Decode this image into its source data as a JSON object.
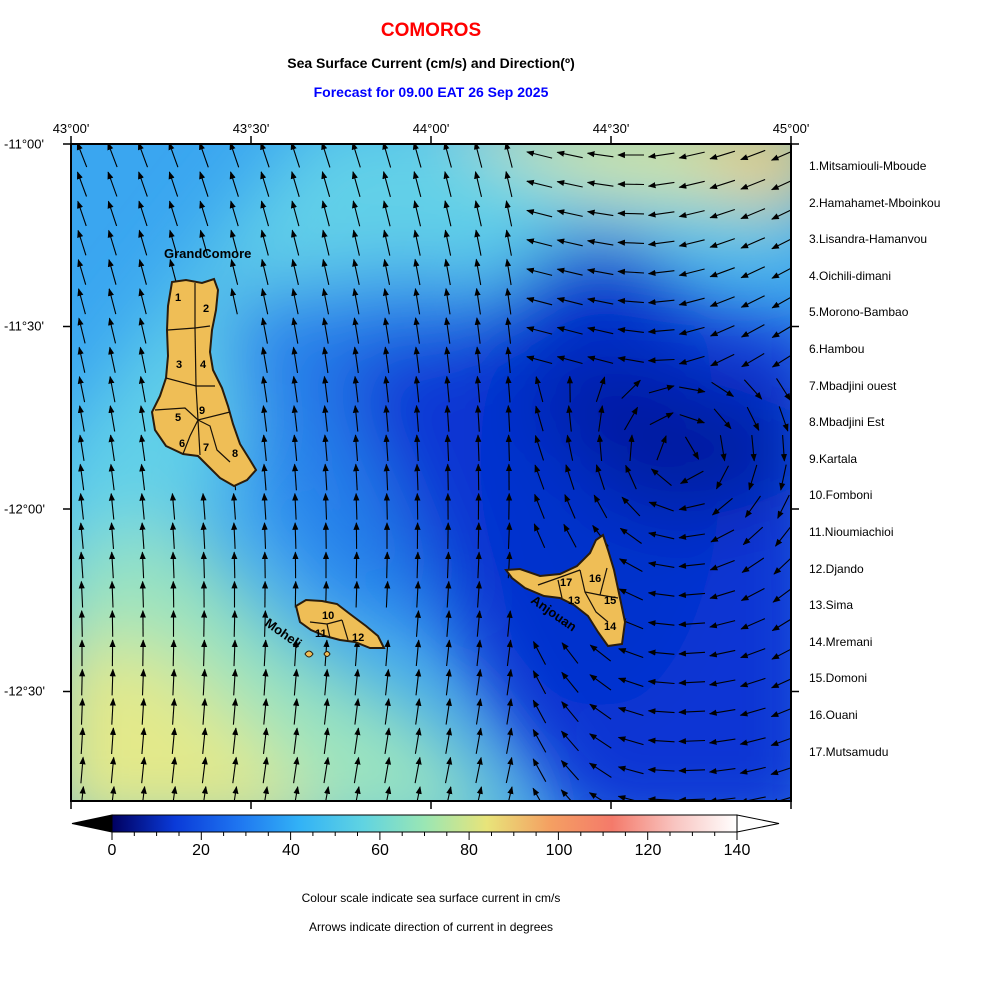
{
  "header": {
    "title": "COMOROS",
    "subtitle": "Sea Surface Current (cm/s) and Direction(º)",
    "forecast": "Forecast for  09.00 EAT 26 Sep 2025"
  },
  "axes": {
    "longitude_labels": [
      "43°00'",
      "43°30'",
      "44°00'",
      "44°30'",
      "45°00'"
    ],
    "latitude_labels": [
      "-11°00'",
      "-11°30'",
      "-12°00'",
      "-12°30'"
    ],
    "lon_range": [
      43.0,
      45.0
    ],
    "lat_range": [
      -12.8,
      -11.0
    ]
  },
  "islands": {
    "grand_comore": "GrandComore",
    "moheli": "Moheli",
    "anjouan": "Anjouan"
  },
  "districts": [
    "1.Mitsamiouli-Mboude",
    "2.Hamahamet-Mboinkou",
    "3.Lisandra-Hamanvou",
    "4.Oichili-dimani",
    "5.Morono-Bambao",
    "6.Hambou",
    "7.Mbadjini ouest",
    "8.Mbadjini Est",
    "9.Kartala",
    "10.Fomboni",
    "11.Nioumiachioi",
    "12.Djando",
    "13.Sima",
    "14.Mremani",
    "15.Domoni",
    "16.Ouani",
    "17.Mutsamudu"
  ],
  "colorbar": {
    "ticks": [
      "0",
      "20",
      "40",
      "60",
      "80",
      "100",
      "120",
      "140"
    ],
    "min": -10,
    "max": 150,
    "colors": [
      "#000060",
      "#0010a8",
      "#0a3ad8",
      "#1e74f0",
      "#32b2f6",
      "#5fd3e2",
      "#9ae6b4",
      "#d6ea86",
      "#f0da72",
      "#f4a062",
      "#f47a6a",
      "#f6b0ac",
      "#fcdcd8",
      "#ffffff"
    ]
  },
  "notes": {
    "colour_note": "Colour scale indicate sea surface current in cm/s",
    "arrow_note": "Arrows indicate direction of current in degrees"
  }
}
